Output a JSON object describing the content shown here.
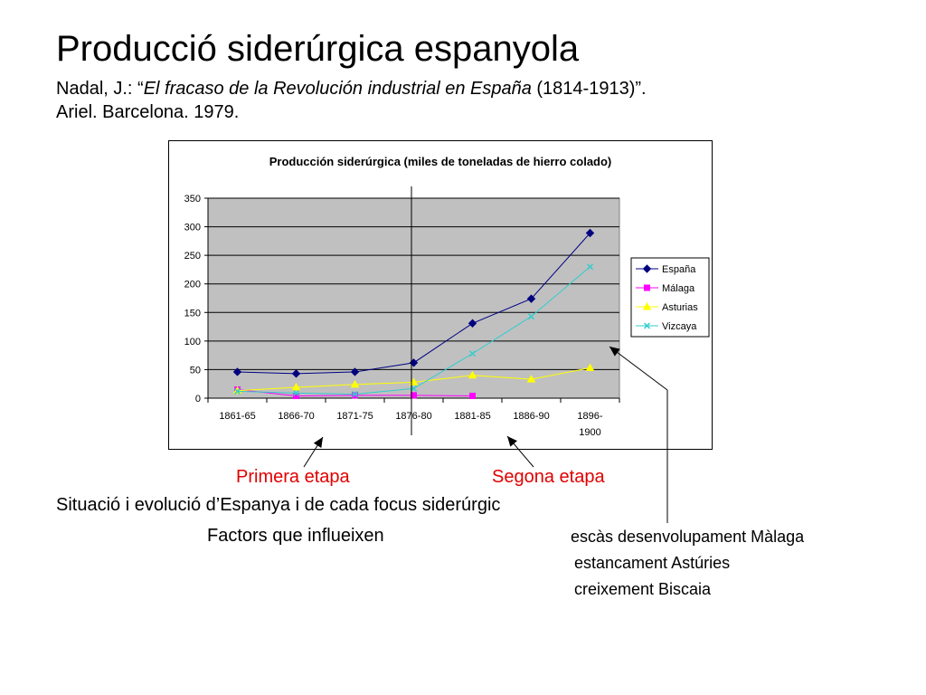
{
  "slide": {
    "title": "Producció siderúrgica espanyola",
    "ref_author": "Nadal, J.: “",
    "ref_book": "El fracaso de la Revolución industrial en España",
    "ref_years": " (1814-1913)”.",
    "ref_line2": "Ariel. Barcelona. 1979.",
    "stage1": "Primera etapa",
    "stage2": "Segona etapa",
    "situation": "Situació i evolució d’Espanya i de cada focus siderúrgic",
    "factors": "Factors que influeixen",
    "notes": [
      "escàs desenvolupament Màlaga",
      "estancament Astúries",
      "creixement Biscaia"
    ]
  },
  "chart_data": {
    "type": "line",
    "title": "Producción siderúrgica (miles de toneladas de hierro colado)",
    "categories": [
      "1861-65",
      "1866-70",
      "1871-75",
      "1876-80",
      "1881-85",
      "1886-90",
      "1896-1900"
    ],
    "ylim": [
      0,
      350
    ],
    "yticks": [
      0,
      50,
      100,
      150,
      200,
      250,
      300,
      350
    ],
    "grid": true,
    "legend": "right",
    "plot_background": "#c0c0c0",
    "series": [
      {
        "name": "España",
        "color": "#000080",
        "marker": "diamond",
        "values": [
          46,
          43,
          46,
          62,
          131,
          174,
          289
        ]
      },
      {
        "name": "Málaga",
        "color": "#ff00ff",
        "marker": "square",
        "values": [
          15,
          4,
          5,
          5,
          4,
          null,
          null
        ]
      },
      {
        "name": "Asturias",
        "color": "#ffff00",
        "marker": "triangle",
        "values": [
          13,
          19,
          24,
          28,
          40,
          33,
          53
        ]
      },
      {
        "name": "Vizcaya",
        "color": "#33cccc",
        "marker": "x",
        "values": [
          12,
          9,
          7,
          17,
          78,
          143,
          230
        ]
      }
    ]
  }
}
